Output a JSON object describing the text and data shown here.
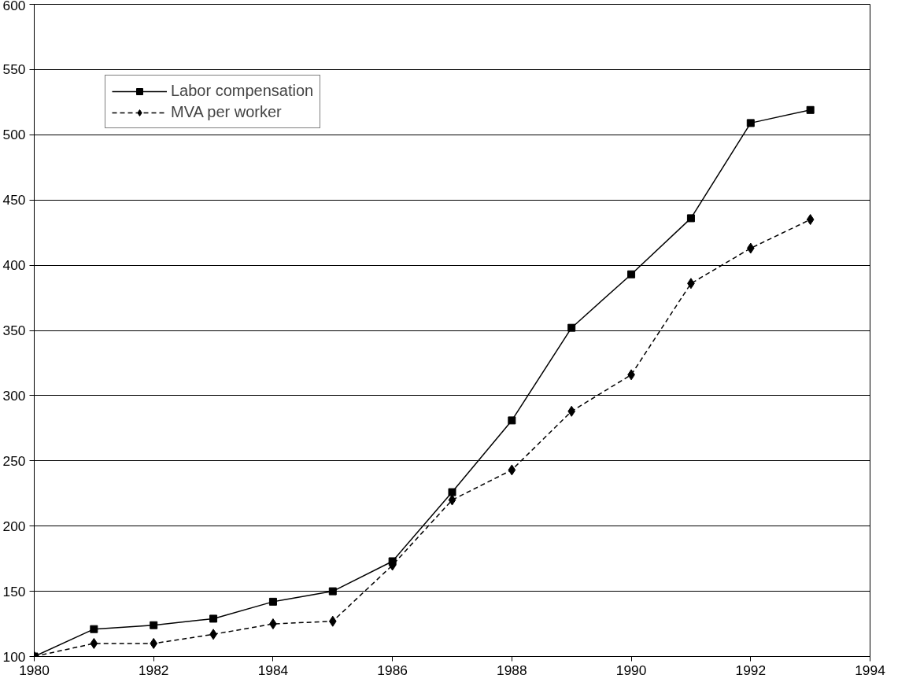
{
  "chart_data": {
    "type": "line",
    "x": [
      1980,
      1981,
      1982,
      1983,
      1984,
      1985,
      1986,
      1987,
      1988,
      1989,
      1990,
      1991,
      1992,
      1993
    ],
    "series": [
      {
        "name": "Labor compensation",
        "color": "#000000",
        "marker": "square",
        "line_style": "solid",
        "values": [
          100,
          121,
          124,
          129,
          142,
          150,
          173,
          226,
          281,
          352,
          393,
          436,
          509,
          519
        ]
      },
      {
        "name": "MVA per worker",
        "color": "#000000",
        "marker": "diamond",
        "line_style": "dashed",
        "values": [
          100,
          110,
          110,
          117,
          125,
          127,
          170,
          220,
          243,
          288,
          316,
          386,
          413,
          435
        ]
      }
    ],
    "xlim": [
      1980,
      1994
    ],
    "xticks": [
      1980,
      1982,
      1984,
      1986,
      1988,
      1990,
      1992,
      1994
    ],
    "ylim": [
      100,
      600
    ],
    "yticks": [
      100,
      150,
      200,
      250,
      300,
      350,
      400,
      450,
      500,
      550,
      600
    ],
    "grid": "y",
    "legend": "top left"
  }
}
